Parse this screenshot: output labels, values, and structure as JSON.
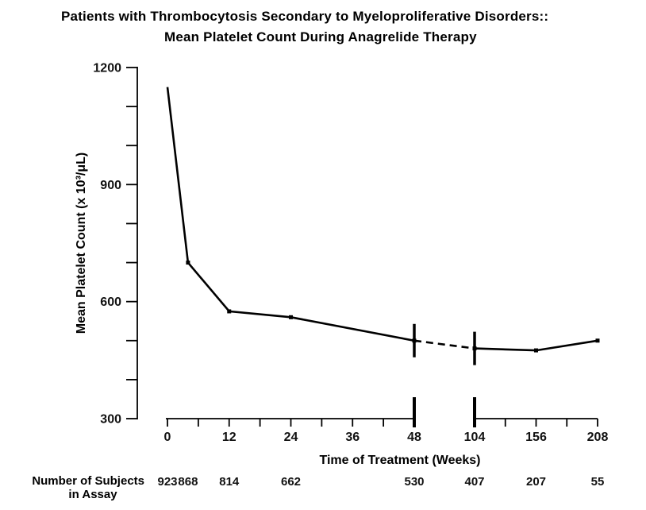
{
  "figure": {
    "title_line1": "Patients with Thrombocytosis Secondary to Myeloproliferative Disorders::",
    "title_line2": "Mean Platelet Count During Anagrelide Therapy"
  },
  "chart_data": {
    "type": "line",
    "title": "Patients with Thrombocytosis Secondary to Myeloproliferative Disorders:: Mean Platelet Count During Anagrelide Therapy",
    "xlabel": "Time of Treatment (Weeks)",
    "ylabel": "Mean Platelet Count (x 10³/μL)",
    "x_weeks": [
      0,
      4,
      12,
      24,
      48,
      104,
      156,
      208
    ],
    "mean_platelet_count": [
      1150,
      700,
      575,
      560,
      500,
      480,
      475,
      500
    ],
    "number_of_subjects": [
      923,
      868,
      814,
      662,
      530,
      407,
      207,
      55
    ],
    "point_has_marker": [
      false,
      true,
      true,
      true,
      true,
      true,
      true,
      true
    ],
    "dashed_between_weeks": [
      48,
      104
    ],
    "axis_break_at_weeks": [
      48,
      104
    ],
    "y_axis": {
      "min": 300,
      "max": 1200,
      "labeled_ticks": [
        1200,
        900,
        600,
        300
      ],
      "minor_ticks": [
        1100,
        1000,
        800,
        700,
        500,
        400
      ]
    },
    "x_axis": {
      "segment1": {
        "range_weeks": [
          0,
          48
        ],
        "ticks": [
          0,
          6,
          12,
          18,
          24,
          30,
          36,
          42,
          48
        ],
        "labeled_ticks": [
          0,
          12,
          24,
          36,
          48
        ]
      },
      "segment2": {
        "range_weeks": [
          104,
          208
        ],
        "ticks": [
          104,
          130,
          156,
          182,
          208
        ],
        "labeled_ticks": [
          104,
          156,
          208
        ]
      }
    },
    "subjects_row": {
      "label_line1": "Number of Subjects",
      "label_line2": "in Assay"
    },
    "line_color": "#000000",
    "background": "#ffffff",
    "grid": false,
    "legend": false
  }
}
